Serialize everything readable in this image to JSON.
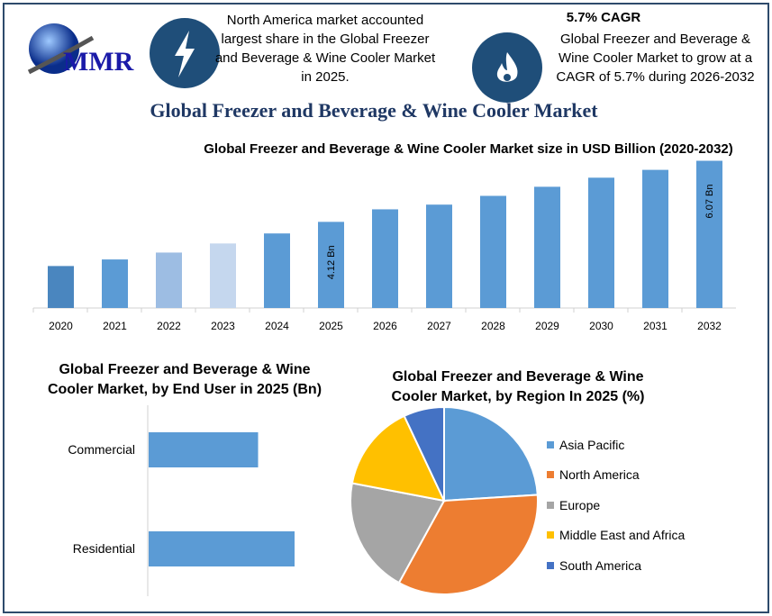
{
  "logo": {
    "text": "MMR"
  },
  "highlights": [
    {
      "icon": "lightning-icon",
      "text": "North America market accounted largest share in the Global Freezer and Beverage & Wine Cooler Market in 2025."
    },
    {
      "icon": "flame-icon",
      "heading": "5.7% CAGR",
      "text": "Global Freezer and Beverage & Wine Cooler Market to grow at a CAGR of 5.7% during 2026-2032"
    }
  ],
  "title": "Global Freezer and Beverage & Wine Cooler Market",
  "chart_data": [
    {
      "type": "bar",
      "title": "Global Freezer and Beverage & Wine Cooler Market size in USD Billion (2020-2032)",
      "categories": [
        "2020",
        "2021",
        "2022",
        "2023",
        "2024",
        "2025",
        "2026",
        "2027",
        "2028",
        "2029",
        "2030",
        "2031",
        "2032"
      ],
      "values": [
        2.71,
        2.92,
        3.14,
        3.43,
        3.75,
        4.12,
        4.52,
        4.67,
        4.95,
        5.24,
        5.53,
        5.78,
        6.07
      ],
      "colors": [
        "#4a86bf",
        "#5b9bd5",
        "#9dbde3",
        "#c5d7ee",
        "#5b9bd5",
        "#5b9bd5",
        "#5b9bd5",
        "#5b9bd5",
        "#5b9bd5",
        "#5b9bd5",
        "#5b9bd5",
        "#5b9bd5",
        "#5b9bd5"
      ],
      "data_labels": {
        "2025": "4.12 Bn",
        "2032": "6.07 Bn"
      },
      "ylim": [
        1.37,
        6.2
      ]
    },
    {
      "type": "bar",
      "orientation": "horizontal",
      "title": "Global Freezer and Beverage & Wine Cooler Market, by End User in 2025 (Bn)",
      "categories": [
        "Commercial",
        "Residential"
      ],
      "values": [
        0.75,
        1.0
      ],
      "color": "#5b9bd5"
    },
    {
      "type": "pie",
      "title": "Global Freezer and Beverage & Wine Cooler Market, by Region In 2025 (%)",
      "categories": [
        "Asia Pacific",
        "North America",
        "Europe",
        "Middle East and Africa",
        "South America"
      ],
      "values": [
        24,
        34,
        20,
        15,
        7
      ],
      "colors": [
        "#5b9bd5",
        "#ed7d31",
        "#a5a5a5",
        "#ffc000",
        "#4472c4"
      ],
      "legend": "right"
    }
  ]
}
